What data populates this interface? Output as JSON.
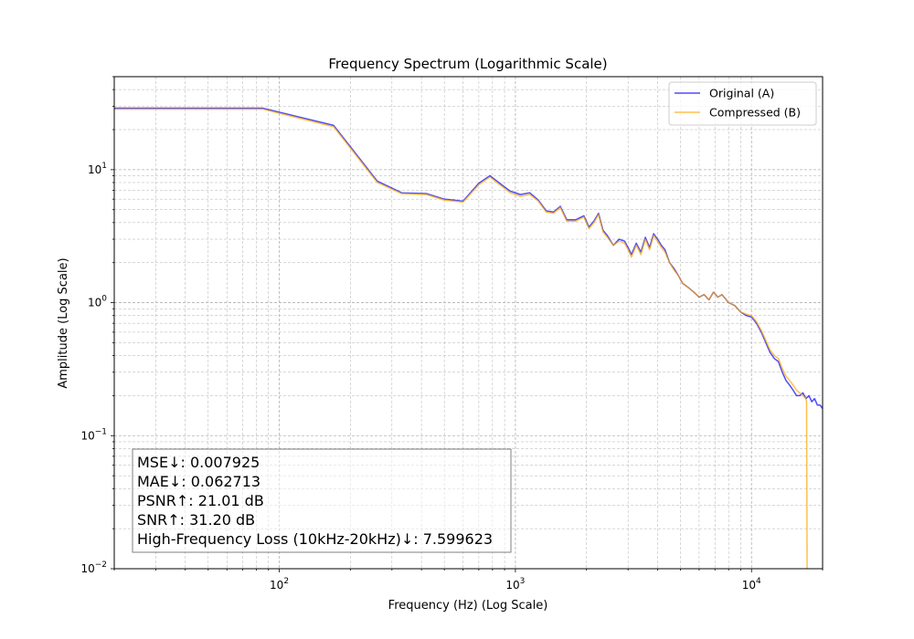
{
  "chart_data": {
    "type": "line",
    "title": "Frequency Spectrum (Logarithmic Scale)",
    "xlabel": "Frequency (Hz) (Log Scale)",
    "ylabel": "Amplitude (Log Scale)",
    "xscale": "log",
    "yscale": "log",
    "xlim": [
      20,
      20000
    ],
    "ylim": [
      0.01,
      50
    ],
    "grid": true,
    "legend_position": "top-right",
    "x_ticks": [
      {
        "value": 100,
        "base": "10",
        "exp": "2"
      },
      {
        "value": 1000,
        "base": "10",
        "exp": "3"
      },
      {
        "value": 10000,
        "base": "10",
        "exp": "4"
      }
    ],
    "y_ticks": [
      {
        "value": 0.01,
        "base": "10",
        "exp": "−2"
      },
      {
        "value": 0.1,
        "base": "10",
        "exp": "−1"
      },
      {
        "value": 1,
        "base": "10",
        "exp": "0"
      },
      {
        "value": 10,
        "base": "10",
        "exp": "1"
      }
    ],
    "series": [
      {
        "name": "Original (A)",
        "color": "#0000ff",
        "opacity": 0.7,
        "x": [
          20,
          85,
          170,
          260,
          330,
          420,
          500,
          600,
          700,
          780,
          850,
          950,
          1050,
          1150,
          1250,
          1350,
          1450,
          1550,
          1650,
          1800,
          1950,
          2050,
          2150,
          2250,
          2350,
          2450,
          2600,
          2750,
          2900,
          3000,
          3100,
          3250,
          3400,
          3550,
          3700,
          3850,
          4000,
          4150,
          4300,
          4500,
          4700,
          4900,
          5100,
          5400,
          5700,
          6000,
          6300,
          6600,
          6900,
          7200,
          7500,
          8000,
          8500,
          9000,
          9500,
          10000,
          10500,
          11000,
          11500,
          12000,
          12500,
          13000,
          13500,
          14000,
          14500,
          15000,
          15500,
          16000,
          16500,
          17000,
          17500,
          18000,
          18500,
          19000,
          19500,
          20000
        ],
        "y": [
          29,
          29,
          21.5,
          8.2,
          6.7,
          6.6,
          6.0,
          5.8,
          7.9,
          9.0,
          8.0,
          6.9,
          6.5,
          6.7,
          5.9,
          4.9,
          4.8,
          5.3,
          4.2,
          4.2,
          4.5,
          3.7,
          4.1,
          4.7,
          3.5,
          3.2,
          2.7,
          3.0,
          2.9,
          2.6,
          2.3,
          2.8,
          2.4,
          3.1,
          2.6,
          3.3,
          3.0,
          2.7,
          2.5,
          2.0,
          1.8,
          1.6,
          1.4,
          1.3,
          1.2,
          1.1,
          1.15,
          1.05,
          1.2,
          1.1,
          1.15,
          1.0,
          0.95,
          0.85,
          0.8,
          0.78,
          0.7,
          0.6,
          0.5,
          0.42,
          0.38,
          0.36,
          0.3,
          0.26,
          0.24,
          0.22,
          0.2,
          0.2,
          0.21,
          0.19,
          0.2,
          0.18,
          0.19,
          0.17,
          0.17,
          0.16
        ]
      },
      {
        "name": "Compressed (B)",
        "color": "#ffa500",
        "opacity": 0.7,
        "x": [
          20,
          85,
          170,
          260,
          330,
          420,
          500,
          600,
          700,
          780,
          850,
          950,
          1050,
          1150,
          1250,
          1350,
          1450,
          1550,
          1650,
          1800,
          1950,
          2050,
          2150,
          2250,
          2350,
          2450,
          2600,
          2750,
          2900,
          3000,
          3100,
          3250,
          3400,
          3550,
          3700,
          3850,
          4000,
          4150,
          4300,
          4500,
          4700,
          4900,
          5100,
          5400,
          5700,
          6000,
          6300,
          6600,
          6900,
          7200,
          7500,
          8000,
          8500,
          9000,
          9500,
          10000,
          10500,
          11000,
          11500,
          12000,
          12500,
          13000,
          13500,
          14000,
          14500,
          15000,
          15500,
          16000,
          16500,
          17000,
          17100,
          17150,
          17200
        ],
        "y": [
          28.5,
          28.5,
          21.0,
          8.0,
          6.6,
          6.5,
          5.9,
          5.7,
          7.7,
          8.8,
          7.8,
          6.7,
          6.3,
          6.5,
          5.8,
          4.8,
          4.7,
          5.2,
          4.1,
          4.1,
          4.4,
          3.6,
          4.0,
          4.6,
          3.4,
          3.1,
          2.7,
          2.9,
          2.8,
          2.5,
          2.2,
          2.7,
          2.3,
          3.0,
          2.5,
          3.2,
          2.9,
          2.6,
          2.4,
          2.0,
          1.75,
          1.6,
          1.4,
          1.3,
          1.2,
          1.1,
          1.15,
          1.05,
          1.2,
          1.1,
          1.15,
          1.0,
          0.95,
          0.85,
          0.82,
          0.8,
          0.72,
          0.62,
          0.52,
          0.44,
          0.4,
          0.38,
          0.32,
          0.28,
          0.26,
          0.24,
          0.22,
          0.21,
          0.2,
          0.19,
          0.18,
          0.05,
          0.009
        ]
      }
    ],
    "annotations": [
      "MSE↓: 0.007925",
      "MAE↓: 0.062713",
      "PSNR↑: 21.01 dB",
      "SNR↑: 31.20 dB",
      "High-Frequency Loss (10kHz-20kHz)↓: 7.599623"
    ]
  }
}
